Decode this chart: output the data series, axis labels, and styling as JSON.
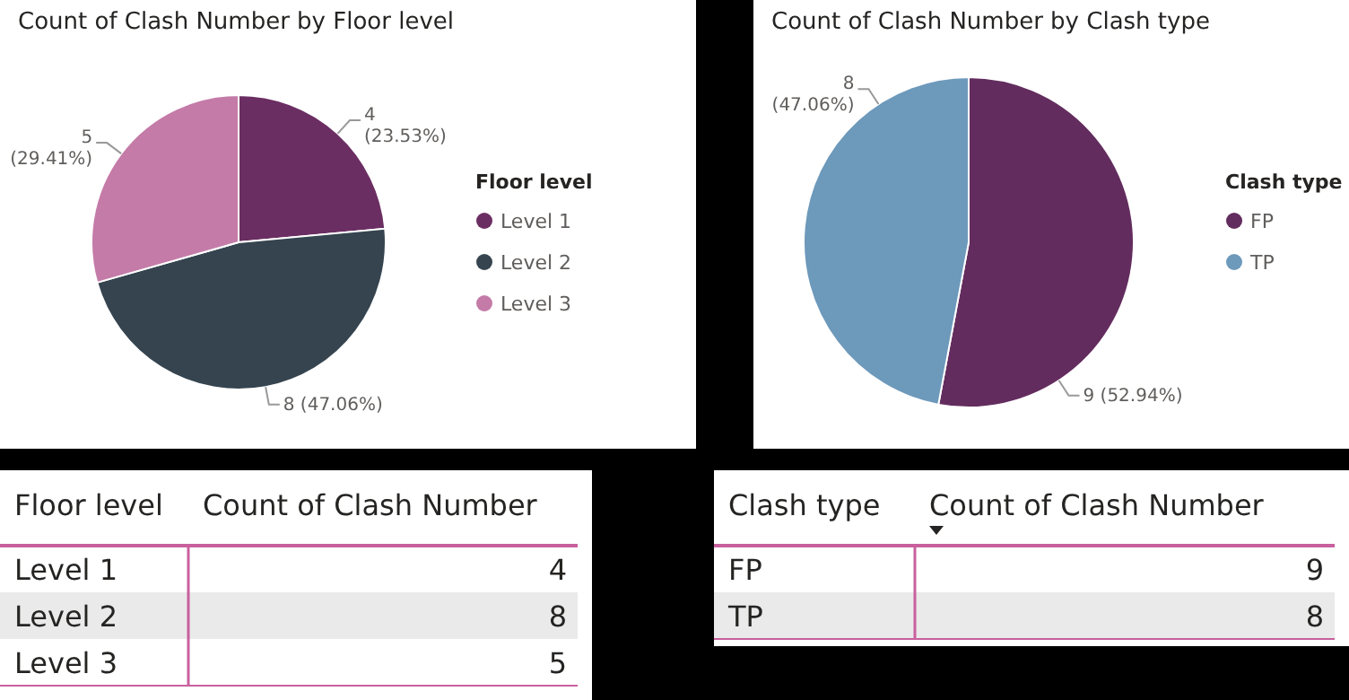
{
  "chart_data": [
    {
      "type": "pie",
      "title": "Count of Clash Number by Floor level",
      "legend_title": "Floor level",
      "legend": "right",
      "categories": [
        "Level 1",
        "Level 2",
        "Level 3"
      ],
      "values": [
        4,
        8,
        5
      ],
      "colors": [
        "#6b2e62",
        "#35444f",
        "#c47ba8"
      ],
      "value_labels": [
        "4 (23.53%)",
        "8 (47.06%)",
        "5 (29.41%)"
      ]
    },
    {
      "type": "pie",
      "title": "Count of Clash Number by Clash type",
      "legend_title": "Clash type",
      "legend": "right",
      "categories": [
        "FP",
        "TP"
      ],
      "values": [
        9,
        8
      ],
      "colors": [
        "#632c5e",
        "#6d99bb"
      ],
      "value_labels": [
        "9 (52.94%)",
        "8 (47.06%)"
      ]
    },
    {
      "type": "other",
      "xlabel": "Floor level",
      "ylabel": "Count of Clash Number",
      "categories": [
        "Level 1",
        "Level 2",
        "Level 3"
      ],
      "values": [
        4,
        8,
        5
      ],
      "data_labels": true
    },
    {
      "type": "other",
      "xlabel": "Clash type",
      "ylabel": "Count of Clash Number",
      "categories": [
        "FP",
        "TP"
      ],
      "values": [
        9,
        8
      ],
      "data_labels": true
    }
  ]
}
